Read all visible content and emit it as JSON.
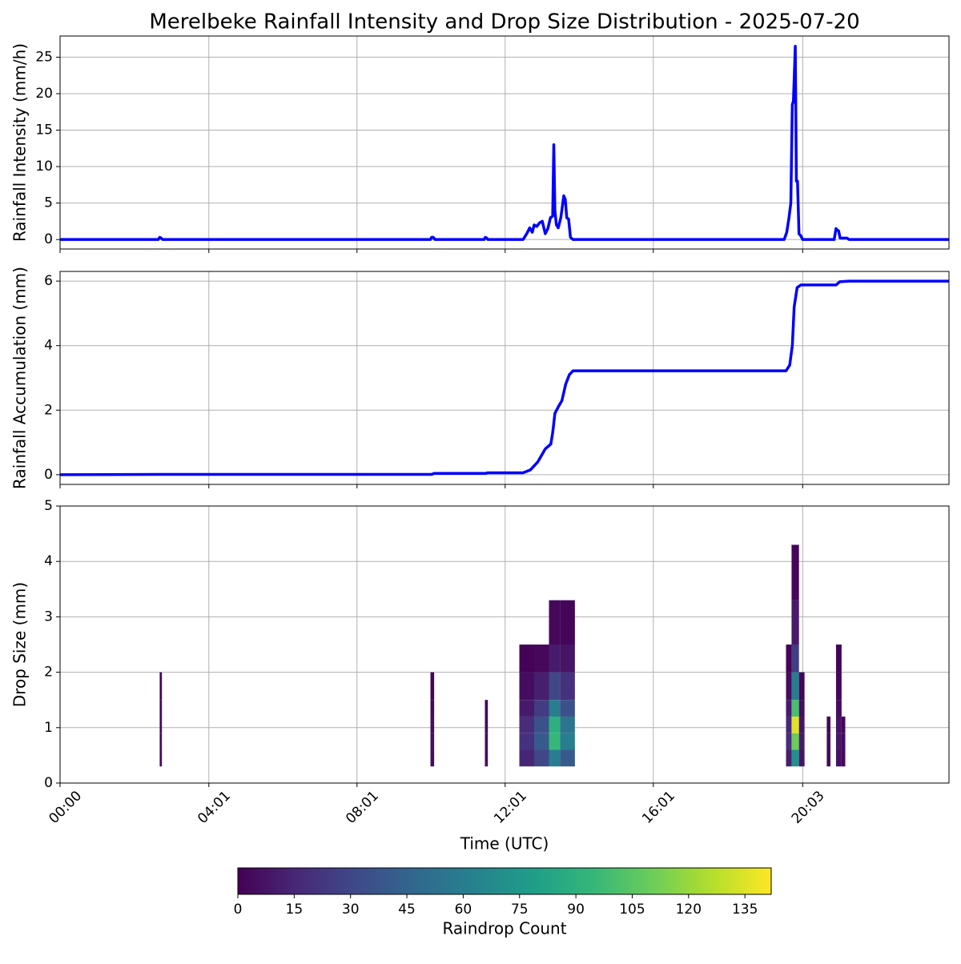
{
  "chart_data": [
    {
      "type": "line",
      "title": "Merelbeke Rainfall Intensity and Drop Size Distribution - 2025-07-20",
      "ylabel": "Rainfall Intensity (mm/h)",
      "color": "#0000ff",
      "grid": true,
      "xlim": [
        0,
        24
      ],
      "xticks": [
        0,
        4.0167,
        8.0167,
        12.0167,
        16.0167,
        20.05
      ],
      "ylim": [
        -1.3,
        27.9
      ],
      "yticks": [
        0,
        5,
        10,
        15,
        20,
        25
      ],
      "x": [
        0,
        2.65,
        2.69,
        2.73,
        2.77,
        10.0,
        10.03,
        10.08,
        10.12,
        11.45,
        11.48,
        11.52,
        11.55,
        12.5,
        12.6,
        12.68,
        12.75,
        12.8,
        12.87,
        12.95,
        13.02,
        13.1,
        13.17,
        13.24,
        13.3,
        13.33,
        13.36,
        13.4,
        13.45,
        13.52,
        13.6,
        13.64,
        13.68,
        13.73,
        13.78,
        13.85,
        19.55,
        19.62,
        19.68,
        19.73,
        19.77,
        19.8,
        19.85,
        19.88,
        19.91,
        19.95,
        20.0,
        20.05,
        20.9,
        20.95,
        20.98,
        21.02,
        21.06,
        21.1,
        21.25,
        21.3,
        24
      ],
      "values": [
        0,
        0,
        0.3,
        0.2,
        0,
        0,
        0.3,
        0.3,
        0,
        0,
        0.3,
        0.2,
        0,
        0,
        0.8,
        1.6,
        1.0,
        2.0,
        1.8,
        2.3,
        2.5,
        0.8,
        1.5,
        3.0,
        3.2,
        13.0,
        4.0,
        2.0,
        1.6,
        3.0,
        6.0,
        5.5,
        3.0,
        2.8,
        0.3,
        0,
        0,
        1.0,
        3.0,
        5.0,
        18.5,
        19.0,
        26.5,
        8.0,
        8.0,
        0.8,
        0.5,
        0,
        0,
        1.5,
        1.3,
        1.2,
        0.2,
        0.2,
        0.2,
        0,
        0
      ]
    },
    {
      "type": "line",
      "ylabel": "Rainfall Accumulation (mm)",
      "color": "#0000ff",
      "grid": true,
      "xlim": [
        0,
        24
      ],
      "xticks": [
        0,
        4.0167,
        8.0167,
        12.0167,
        16.0167,
        20.05
      ],
      "ylim": [
        -0.3,
        6.3
      ],
      "yticks": [
        0,
        2,
        4,
        6
      ],
      "x": [
        0,
        2.69,
        10.03,
        10.1,
        11.48,
        11.55,
        12.5,
        12.7,
        12.9,
        13.1,
        13.25,
        13.3,
        13.36,
        13.45,
        13.55,
        13.65,
        13.75,
        13.85,
        19.6,
        19.7,
        19.77,
        19.82,
        19.9,
        20.0,
        20.95,
        21.05,
        21.3,
        24
      ],
      "values": [
        0,
        0.01,
        0.01,
        0.04,
        0.04,
        0.06,
        0.06,
        0.15,
        0.4,
        0.8,
        0.95,
        1.3,
        1.9,
        2.1,
        2.3,
        2.8,
        3.1,
        3.22,
        3.22,
        3.4,
        4.0,
        5.2,
        5.8,
        5.88,
        5.88,
        5.98,
        6.0,
        6.0
      ]
    },
    {
      "type": "heatmap",
      "ylabel": "Drop Size (mm)",
      "xlabel": "Time (UTC)",
      "grid": true,
      "xlim": [
        0,
        24
      ],
      "xticks": [
        {
          "value": 0,
          "label": "00:00"
        },
        {
          "value": 4.0167,
          "label": "04:01"
        },
        {
          "value": 8.0167,
          "label": "08:01"
        },
        {
          "value": 12.0167,
          "label": "12:01"
        },
        {
          "value": 16.0167,
          "label": "16:01"
        },
        {
          "value": 20.05,
          "label": "20:03"
        }
      ],
      "ylim": [
        0,
        5
      ],
      "yticks": [
        0,
        1,
        2,
        3,
        4,
        5
      ],
      "x_bins": [
        2.69,
        2.75,
        10.0,
        10.1,
        11.47,
        11.55,
        12.4,
        12.8,
        13.2,
        13.5,
        13.9,
        19.6,
        19.75,
        19.95,
        20.1,
        20.7,
        20.8,
        20.95,
        21.1,
        21.2
      ],
      "y_bins": [
        0.3,
        0.6,
        0.9,
        1.2,
        1.5,
        2.0,
        2.5,
        3.3,
        4.3
      ],
      "z": [
        [
          3,
          null,
          5,
          null,
          4,
          null,
          15,
          30,
          60,
          40,
          null,
          12,
          70,
          8,
          null,
          3,
          null,
          6,
          3
        ],
        [
          4,
          null,
          6,
          null,
          5,
          null,
          20,
          40,
          95,
          60,
          null,
          18,
          110,
          10,
          null,
          4,
          null,
          8,
          4
        ],
        [
          3,
          null,
          4,
          null,
          3,
          null,
          18,
          35,
          90,
          55,
          null,
          15,
          135,
          8,
          null,
          2,
          null,
          7,
          2
        ],
        [
          2,
          null,
          3,
          null,
          2,
          null,
          10,
          25,
          60,
          35,
          null,
          10,
          100,
          5,
          null,
          null,
          null,
          4,
          null
        ],
        [
          1,
          null,
          2,
          null,
          null,
          null,
          5,
          12,
          30,
          20,
          null,
          5,
          60,
          2,
          null,
          null,
          null,
          2,
          null
        ],
        [
          null,
          null,
          null,
          null,
          null,
          null,
          1,
          3,
          10,
          8,
          null,
          1,
          25,
          null,
          null,
          null,
          null,
          1,
          null
        ],
        [
          null,
          null,
          null,
          null,
          null,
          null,
          null,
          null,
          3,
          2,
          null,
          null,
          10,
          null,
          null,
          null,
          null,
          null,
          null
        ],
        [
          null,
          null,
          null,
          null,
          null,
          null,
          null,
          null,
          null,
          null,
          null,
          null,
          2,
          null,
          null,
          null,
          null,
          null,
          null
        ]
      ],
      "colormap": "viridis",
      "clim": [
        0,
        142
      ],
      "cticks": [
        0,
        15,
        30,
        45,
        60,
        75,
        90,
        105,
        120,
        135
      ],
      "colorbar_label": "Raindrop Count"
    }
  ]
}
